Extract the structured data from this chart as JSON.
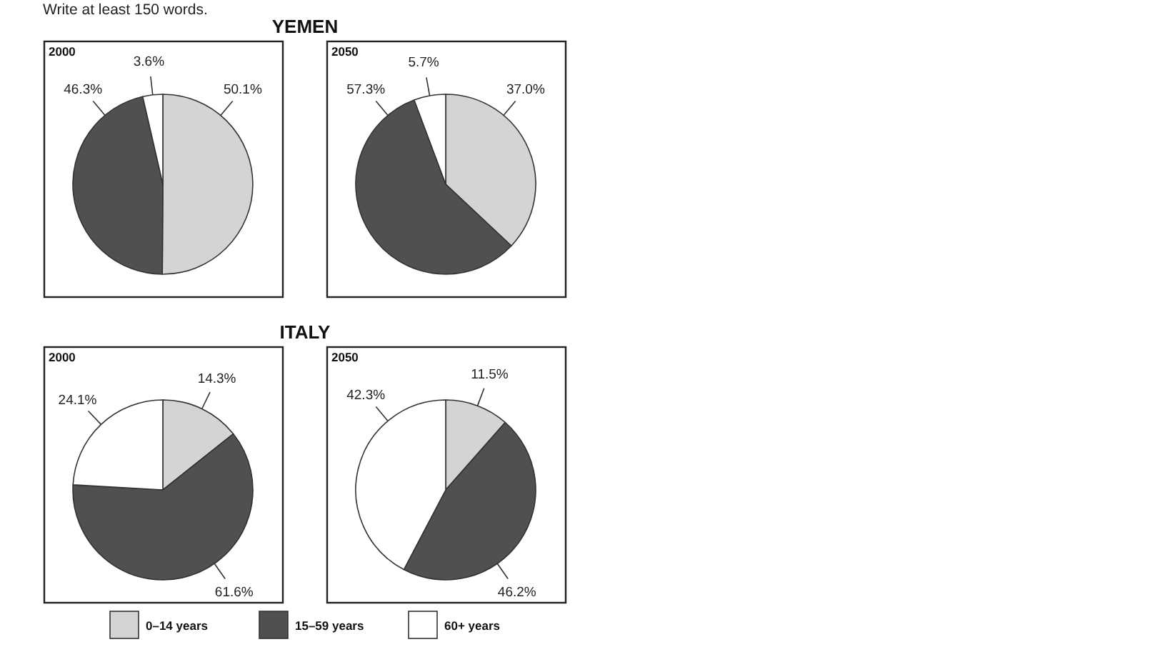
{
  "chart_data": [
    {
      "type": "pie",
      "title": "YEMEN",
      "subtitle": "2000",
      "annotations": [
        "Write at least 150 words."
      ],
      "categories": [
        null,
        null,
        null
      ],
      "values": [
        50.1,
        46.3,
        3.6
      ],
      "value_labels": [
        "50.1%",
        "46.3%",
        "3.6%"
      ],
      "colors": [
        "#d4d4d4",
        "#505050",
        "#ffffff"
      ]
    },
    {
      "type": "pie",
      "subtitle": "2050",
      "categories": [
        null,
        null,
        null
      ],
      "values": [
        37.0,
        57.3,
        5.7
      ],
      "value_labels": [
        "37.0%",
        "57.3%",
        "5.7%"
      ],
      "colors": [
        "#d4d4d4",
        "#505050",
        "#ffffff"
      ]
    },
    {
      "type": "pie",
      "title": "ITALY",
      "subtitle": "2000",
      "categories": [
        "0–14 years",
        "15–59 years",
        "60+ years"
      ],
      "values": [
        14.3,
        61.6,
        24.1
      ],
      "value_labels": [
        "14.3%",
        "61.6%",
        "24.1%"
      ],
      "colors": [
        "#d4d4d4",
        "#505050",
        "#ffffff"
      ],
      "legend": "bottom"
    },
    {
      "type": "pie",
      "subtitle": "2050",
      "categories": [
        null,
        null,
        null
      ],
      "values": [
        11.5,
        46.2,
        42.3
      ],
      "value_labels": [
        "11.5%",
        "46.2%",
        "42.3%"
      ],
      "colors": [
        "#d4d4d4",
        "#505050",
        "#ffffff"
      ]
    }
  ]
}
